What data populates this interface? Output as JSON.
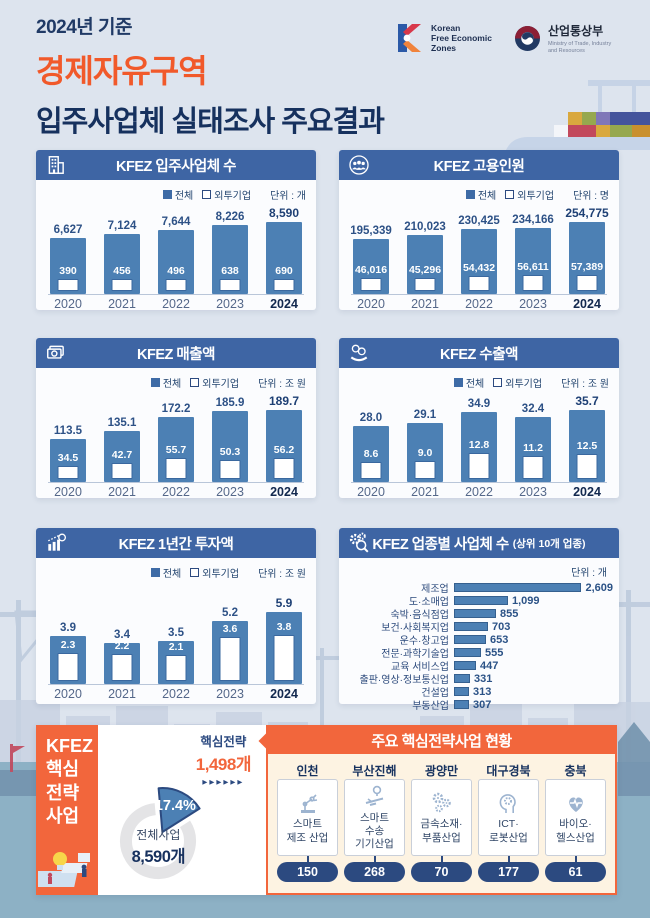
{
  "page": {
    "eyebrow": "2024년 기준",
    "title_line1": "경제자유구역",
    "title_line2": "입주사업체 실태조사 주요결과"
  },
  "logos": {
    "kfez": {
      "line1": "Korean",
      "line2": "Free Economic",
      "line3": "Zones"
    },
    "motie": {
      "name_ko": "산업통상부",
      "name_en_line1": "Ministry of Trade, Industry",
      "name_en_line2": "and Resources"
    }
  },
  "legend": {
    "total": "전체",
    "foreign": "외투기업"
  },
  "colors": {
    "bar_blue": "#4c80b4",
    "header_blue": "#3e65a4",
    "navy": "#2c4a80",
    "orange": "#f2663c",
    "title_orange": "#f1592a",
    "cream": "#fdf3e2",
    "water": "#8db1c5"
  },
  "chart_data": [
    {
      "type": "bar",
      "title": "KFEZ 입주사업체 수",
      "unit": "단위 : 개",
      "icon": "building-icon",
      "categories": [
        "2020",
        "2021",
        "2022",
        "2023",
        "2024"
      ],
      "series": [
        {
          "name": "전체",
          "values": [
            6627,
            7124,
            7644,
            8226,
            8590
          ],
          "labels": [
            "6,627",
            "7,124",
            "7,644",
            "8,226",
            "8,590"
          ]
        },
        {
          "name": "외투기업",
          "values": [
            390,
            456,
            496,
            638,
            690
          ],
          "labels": [
            "390",
            "456",
            "496",
            "638",
            "690"
          ]
        }
      ]
    },
    {
      "type": "bar",
      "title": "KFEZ 고용인원",
      "unit": "단위 : 명",
      "icon": "people-icon",
      "categories": [
        "2020",
        "2021",
        "2022",
        "2023",
        "2024"
      ],
      "series": [
        {
          "name": "전체",
          "values": [
            195339,
            210023,
            230425,
            234166,
            254775
          ],
          "labels": [
            "195,339",
            "210,023",
            "230,425",
            "234,166",
            "254,775"
          ]
        },
        {
          "name": "외투기업",
          "values": [
            46016,
            45296,
            54432,
            56611,
            57389
          ],
          "labels": [
            "46,016",
            "45,296",
            "54,432",
            "56,611",
            "57,389"
          ]
        }
      ]
    },
    {
      "type": "bar",
      "title": "KFEZ 매출액",
      "unit": "단위 : 조 원",
      "icon": "money-icon",
      "categories": [
        "2020",
        "2021",
        "2022",
        "2023",
        "2024"
      ],
      "series": [
        {
          "name": "전체",
          "values": [
            113.5,
            135.1,
            172.2,
            185.9,
            189.7
          ],
          "labels": [
            "113.5",
            "135.1",
            "172.2",
            "185.9",
            "189.7"
          ]
        },
        {
          "name": "외투기업",
          "values": [
            34.5,
            42.7,
            55.7,
            50.3,
            56.2
          ],
          "labels": [
            "34.5",
            "42.7",
            "55.7",
            "50.3",
            "56.2"
          ]
        }
      ]
    },
    {
      "type": "bar",
      "title": "KFEZ 수출액",
      "unit": "단위 : 조 원",
      "icon": "hand-coins-icon",
      "categories": [
        "2020",
        "2021",
        "2022",
        "2023",
        "2024"
      ],
      "series": [
        {
          "name": "전체",
          "values": [
            28.0,
            29.1,
            34.9,
            32.4,
            35.7
          ],
          "labels": [
            "28.0",
            "29.1",
            "34.9",
            "32.4",
            "35.7"
          ]
        },
        {
          "name": "외투기업",
          "values": [
            8.6,
            9.0,
            12.8,
            11.2,
            12.5
          ],
          "labels": [
            "8.6",
            "9.0",
            "12.8",
            "11.2",
            "12.5"
          ]
        }
      ]
    },
    {
      "type": "bar",
      "title": "KFEZ 1년간 투자액",
      "unit": "단위 : 조 원",
      "icon": "investment-icon",
      "categories": [
        "2020",
        "2021",
        "2022",
        "2023",
        "2024"
      ],
      "series": [
        {
          "name": "전체",
          "values": [
            3.9,
            3.4,
            3.5,
            5.2,
            5.9
          ],
          "labels": [
            "3.9",
            "3.4",
            "3.5",
            "5.2",
            "5.9"
          ]
        },
        {
          "name": "외투기업",
          "values": [
            2.3,
            2.2,
            2.1,
            3.6,
            3.8
          ],
          "labels": [
            "2.3",
            "2.2",
            "2.1",
            "3.6",
            "3.8"
          ]
        }
      ]
    },
    {
      "type": "bar-horizontal",
      "title": "KFEZ 업종별 사업체 수",
      "title_suffix": "(상위 10개 업종)",
      "unit": "단위 : 개",
      "icon": "gears-magnifier-icon",
      "categories": [
        "제조업",
        "도·소매업",
        "숙박·음식점업",
        "보건·사회복지업",
        "운수·창고업",
        "전문·과학기술업",
        "교육 서비스업",
        "출판·영상·정보통신업",
        "건설업",
        "부동산업"
      ],
      "values": [
        2609,
        1099,
        855,
        703,
        653,
        555,
        447,
        331,
        313,
        307
      ],
      "value_labels": [
        "2,609",
        "1,099",
        "855",
        "703",
        "653",
        "555",
        "447",
        "331",
        "313",
        "307"
      ]
    }
  ],
  "strategic": {
    "sidebar_line1": "KFEZ",
    "sidebar_line2": "핵심",
    "sidebar_line3": "전략",
    "sidebar_line4": "사업",
    "donut": {
      "type": "pie",
      "slice_label": "핵심전략",
      "slice_value": "1,498개",
      "arrows": "▶▶▶▶▶▶",
      "percent": 17.4,
      "percent_label": "17.4%",
      "center_label": "전체사업",
      "center_value": "8,590개"
    },
    "panel_title": "주요 핵심전략사업 현황",
    "regions": [
      {
        "name": "인천",
        "industry": "스마트\n제조 산업",
        "count": "150",
        "icon": "robot-arm-icon"
      },
      {
        "name": "부산진해",
        "industry": "스마트\n수송\n기기산업",
        "count": "268",
        "icon": "smart-transport-icon"
      },
      {
        "name": "광양만",
        "industry": "금속소재·\n부품산업",
        "count": "70",
        "icon": "gears-icon"
      },
      {
        "name": "대구경북",
        "industry": "ICT·\n로봇산업",
        "count": "177",
        "icon": "ai-head-icon"
      },
      {
        "name": "충북",
        "industry": "바이오·\n헬스산업",
        "count": "61",
        "icon": "health-heart-icon"
      }
    ]
  }
}
